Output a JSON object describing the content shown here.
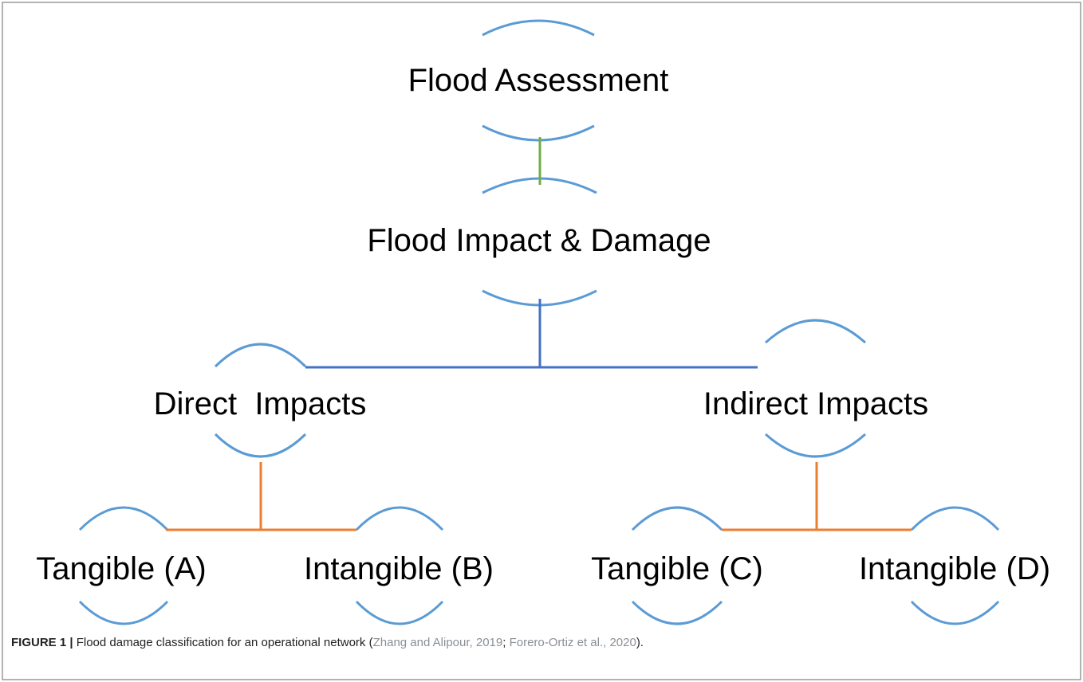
{
  "nodes": [
    {
      "label": "Flood Assessment"
    },
    {
      "label": "Flood Impact & Damage"
    },
    {
      "label": "Direct  Impacts"
    },
    {
      "label": "Indirect Impacts"
    },
    {
      "label": "Tangible (A)"
    },
    {
      "label": "Intangible (B)"
    },
    {
      "label": "Tangible (C)"
    },
    {
      "label": "Intangible (D)"
    }
  ],
  "caption": {
    "figure": "FIGURE 1 |",
    "text": " Flood damage classification for an operational network (",
    "cite1": "Zhang and Alipour, 2019",
    "sep": "; ",
    "cite2": "Forero-Ortiz et al., 2020",
    "end": ")."
  }
}
